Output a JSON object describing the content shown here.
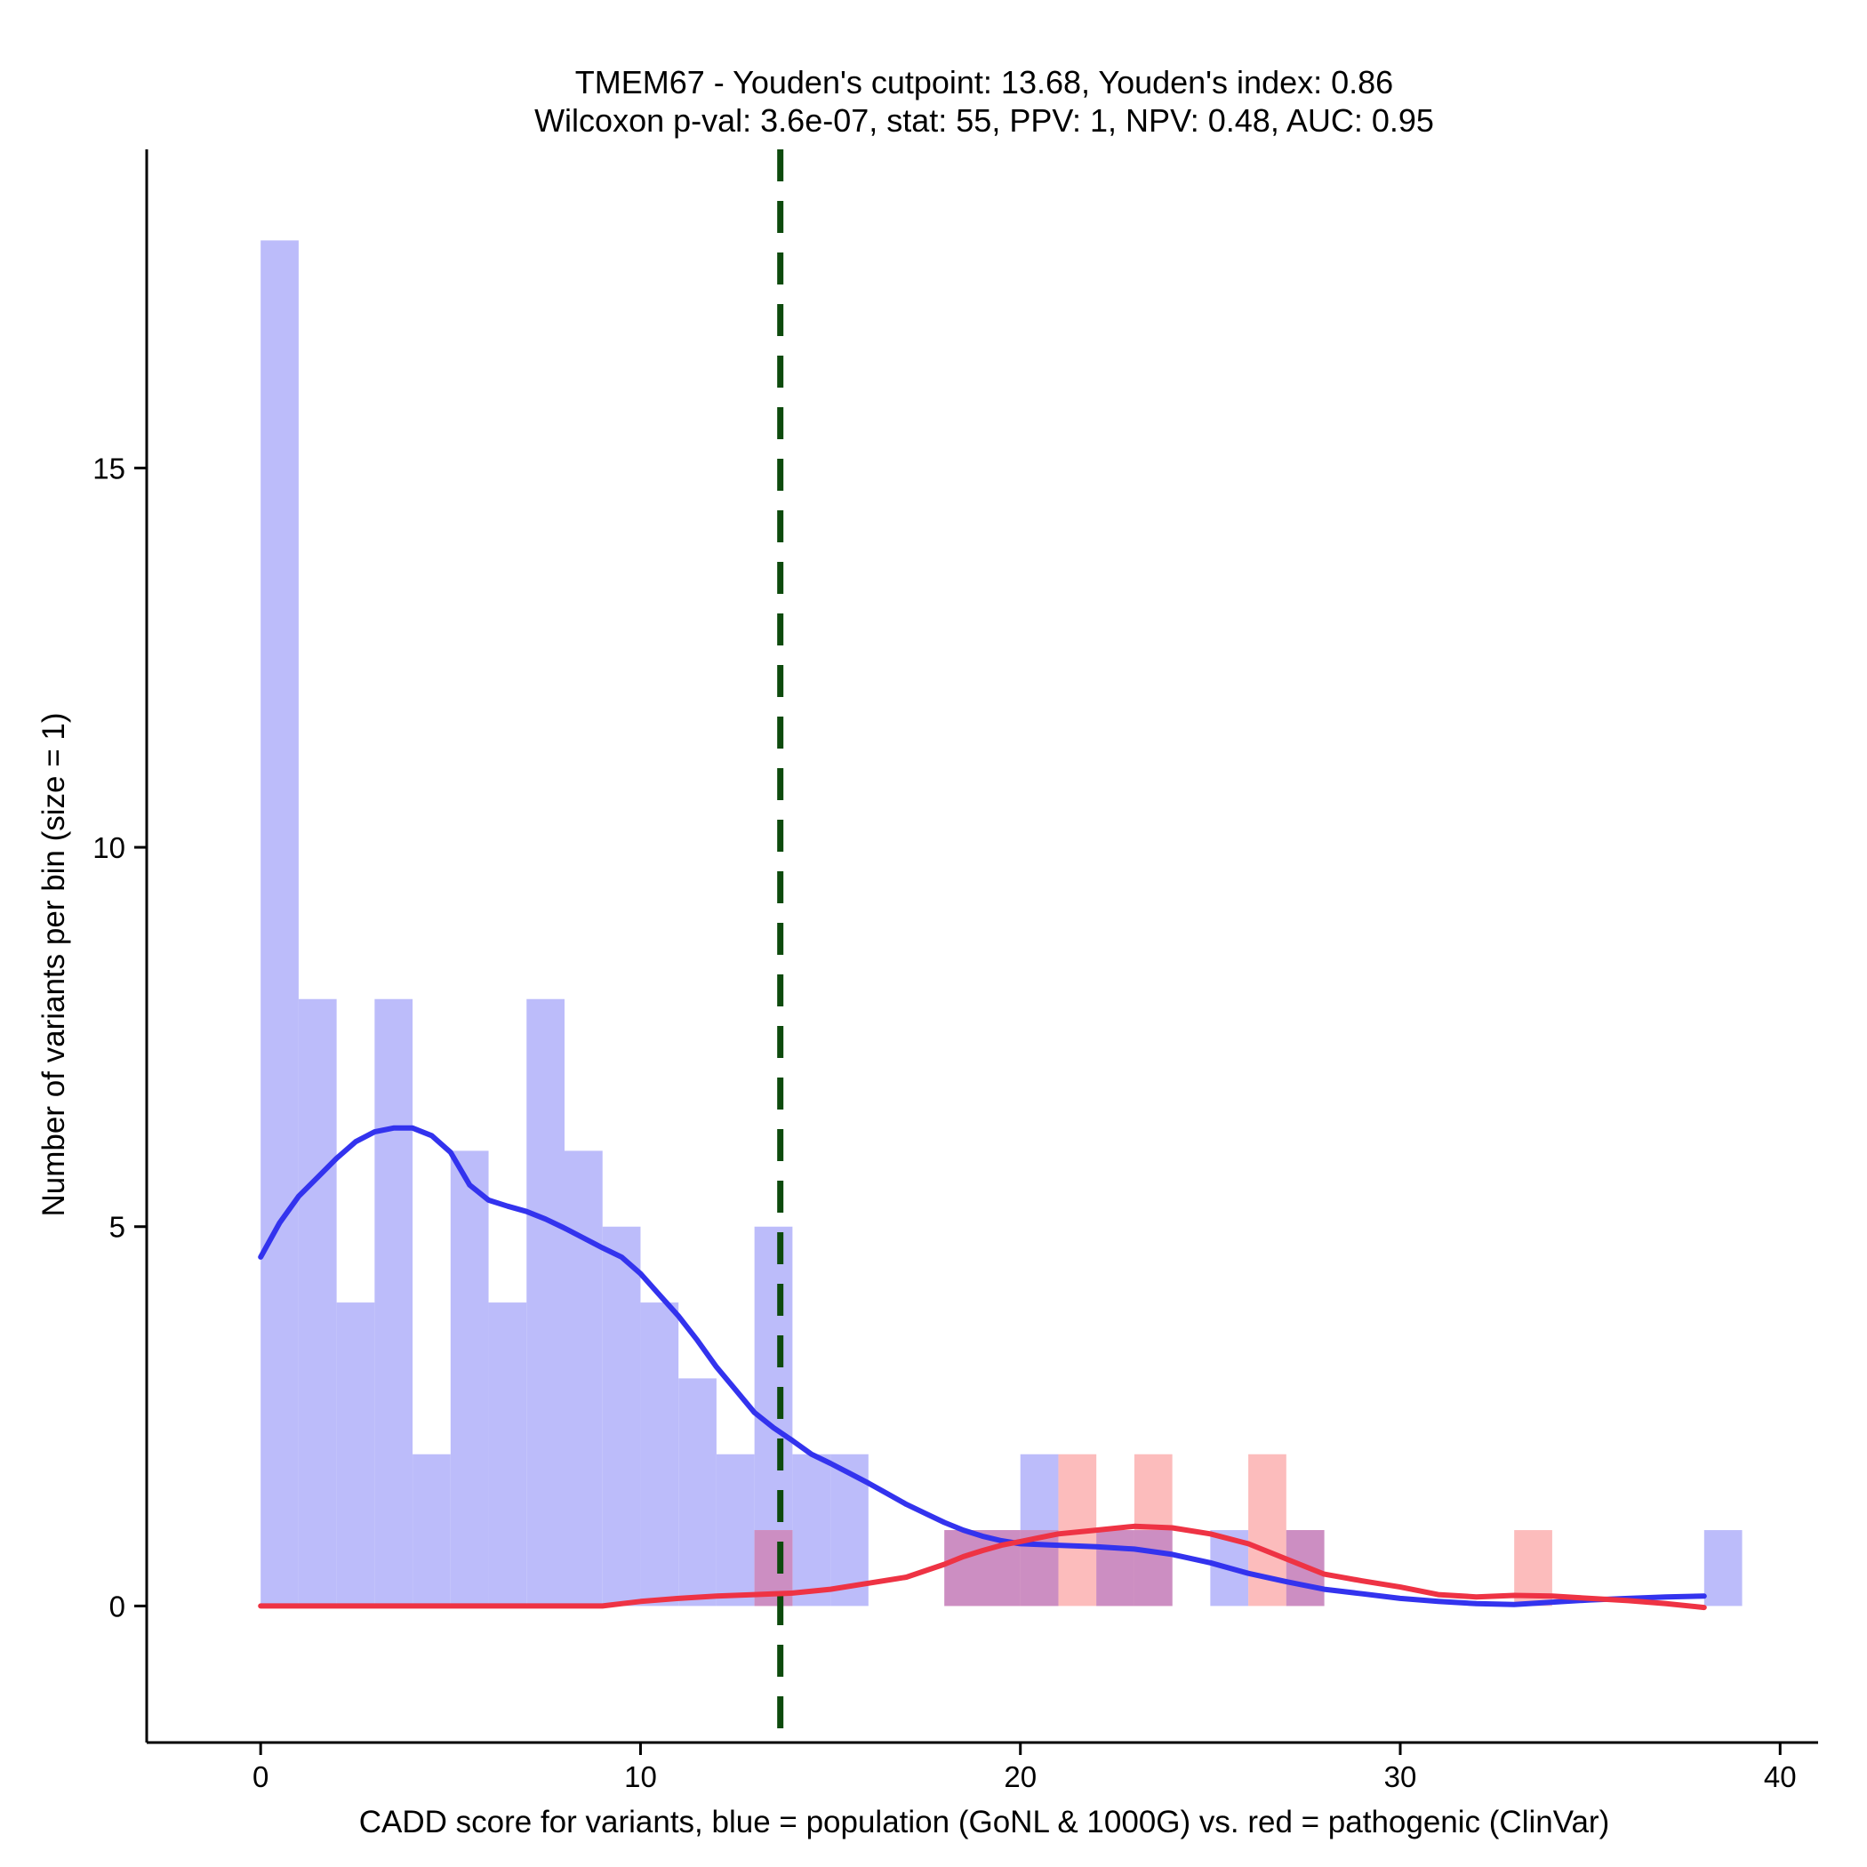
{
  "chart_data": {
    "type": "histogram",
    "title_lines": [
      "TMEM67 - Youden's cutpoint: 13.68, Youden's index: 0.86",
      "Wilcoxon p-val: 3.6e-07, stat: 55, PPV: 1, NPV: 0.48, AUC: 0.95"
    ],
    "xlabel": "CADD score for variants, blue = population (GoNL & 1000G) vs. red = pathogenic (ClinVar)",
    "ylabel": "Number of variants per bin (size = 1)",
    "xlim": [
      -3,
      41
    ],
    "ylim": [
      -1.8,
      19.2
    ],
    "x_ticks": [
      0,
      10,
      20,
      30,
      40
    ],
    "y_ticks": [
      0,
      5,
      10,
      15
    ],
    "bin_size": 1,
    "cutpoint": 13.68,
    "colors": {
      "population": "#bcbcfa",
      "pathogenic": "#fcbcbc",
      "overlap": "#cc8ec2",
      "population_density": "#3333ee",
      "pathogenic_density": "#ee3344",
      "cutpoint_line": "#0d4a0d"
    },
    "series": [
      {
        "name": "population (GoNL & 1000G)",
        "bins": [
          {
            "start": 0,
            "count": 18
          },
          {
            "start": 1,
            "count": 8
          },
          {
            "start": 2,
            "count": 4
          },
          {
            "start": 3,
            "count": 8
          },
          {
            "start": 4,
            "count": 2
          },
          {
            "start": 5,
            "count": 6
          },
          {
            "start": 6,
            "count": 4
          },
          {
            "start": 7,
            "count": 8
          },
          {
            "start": 8,
            "count": 6
          },
          {
            "start": 9,
            "count": 5
          },
          {
            "start": 10,
            "count": 4
          },
          {
            "start": 11,
            "count": 3
          },
          {
            "start": 12,
            "count": 2
          },
          {
            "start": 13,
            "count": 5
          },
          {
            "start": 14,
            "count": 2
          },
          {
            "start": 15,
            "count": 2
          },
          {
            "start": 18,
            "count": 1
          },
          {
            "start": 19,
            "count": 1
          },
          {
            "start": 20,
            "count": 2
          },
          {
            "start": 22,
            "count": 1
          },
          {
            "start": 23,
            "count": 1
          },
          {
            "start": 25,
            "count": 1
          },
          {
            "start": 27,
            "count": 1
          },
          {
            "start": 38,
            "count": 1
          }
        ]
      },
      {
        "name": "pathogenic (ClinVar)",
        "bins": [
          {
            "start": 13,
            "count": 1
          },
          {
            "start": 18,
            "count": 1
          },
          {
            "start": 19,
            "count": 1
          },
          {
            "start": 20,
            "count": 1
          },
          {
            "start": 21,
            "count": 2
          },
          {
            "start": 22,
            "count": 1
          },
          {
            "start": 23,
            "count": 2
          },
          {
            "start": 26,
            "count": 2
          },
          {
            "start": 27,
            "count": 1
          },
          {
            "start": 33,
            "count": 1
          }
        ]
      }
    ],
    "density_curves": [
      {
        "name": "population density",
        "points": [
          [
            0,
            4.6
          ],
          [
            0.5,
            5.05
          ],
          [
            1,
            5.4
          ],
          [
            1.5,
            5.65
          ],
          [
            2,
            5.9
          ],
          [
            2.5,
            6.12
          ],
          [
            3,
            6.25
          ],
          [
            3.5,
            6.3
          ],
          [
            4,
            6.3
          ],
          [
            4.5,
            6.2
          ],
          [
            5,
            5.98
          ],
          [
            5.5,
            5.55
          ],
          [
            6,
            5.35
          ],
          [
            6.5,
            5.27
          ],
          [
            7,
            5.2
          ],
          [
            7.5,
            5.1
          ],
          [
            8,
            4.98
          ],
          [
            8.5,
            4.85
          ],
          [
            9,
            4.72
          ],
          [
            9.5,
            4.6
          ],
          [
            10,
            4.38
          ],
          [
            10.5,
            4.1
          ],
          [
            11,
            3.82
          ],
          [
            11.5,
            3.5
          ],
          [
            12,
            3.15
          ],
          [
            12.5,
            2.85
          ],
          [
            13,
            2.55
          ],
          [
            13.5,
            2.35
          ],
          [
            14,
            2.18
          ],
          [
            14.5,
            2.0
          ],
          [
            15,
            1.88
          ],
          [
            15.5,
            1.75
          ],
          [
            16,
            1.62
          ],
          [
            16.5,
            1.48
          ],
          [
            17,
            1.34
          ],
          [
            17.5,
            1.22
          ],
          [
            18,
            1.1
          ],
          [
            18.5,
            1.0
          ],
          [
            19,
            0.92
          ],
          [
            19.5,
            0.86
          ],
          [
            20,
            0.82
          ],
          [
            21,
            0.8
          ],
          [
            22,
            0.78
          ],
          [
            23,
            0.75
          ],
          [
            24,
            0.68
          ],
          [
            25,
            0.57
          ],
          [
            26,
            0.43
          ],
          [
            27,
            0.32
          ],
          [
            28,
            0.22
          ],
          [
            29,
            0.16
          ],
          [
            30,
            0.1
          ],
          [
            31,
            0.06
          ],
          [
            32,
            0.03
          ],
          [
            33,
            0.02
          ],
          [
            34,
            0.05
          ],
          [
            35,
            0.08
          ],
          [
            36,
            0.1
          ],
          [
            37,
            0.12
          ],
          [
            38,
            0.13
          ]
        ]
      },
      {
        "name": "pathogenic density",
        "points": [
          [
            0,
            0.0
          ],
          [
            2,
            0.0
          ],
          [
            4,
            0.0
          ],
          [
            6,
            0.0
          ],
          [
            8,
            0.0
          ],
          [
            9,
            0.0
          ],
          [
            9.5,
            0.03
          ],
          [
            10,
            0.06
          ],
          [
            11,
            0.1
          ],
          [
            12,
            0.13
          ],
          [
            13,
            0.15
          ],
          [
            13.5,
            0.16
          ],
          [
            14,
            0.17
          ],
          [
            15,
            0.22
          ],
          [
            16,
            0.3
          ],
          [
            17,
            0.38
          ],
          [
            18,
            0.55
          ],
          [
            18.5,
            0.65
          ],
          [
            19,
            0.73
          ],
          [
            19.5,
            0.8
          ],
          [
            20,
            0.85
          ],
          [
            20.5,
            0.9
          ],
          [
            21,
            0.95
          ],
          [
            22,
            1.0
          ],
          [
            23,
            1.05
          ],
          [
            24,
            1.03
          ],
          [
            25,
            0.95
          ],
          [
            26,
            0.82
          ],
          [
            27,
            0.62
          ],
          [
            28,
            0.42
          ],
          [
            29,
            0.33
          ],
          [
            30,
            0.25
          ],
          [
            31,
            0.15
          ],
          [
            32,
            0.12
          ],
          [
            33,
            0.14
          ],
          [
            34,
            0.13
          ],
          [
            35,
            0.1
          ],
          [
            36,
            0.07
          ],
          [
            37,
            0.03
          ],
          [
            38,
            -0.02
          ]
        ]
      }
    ]
  }
}
